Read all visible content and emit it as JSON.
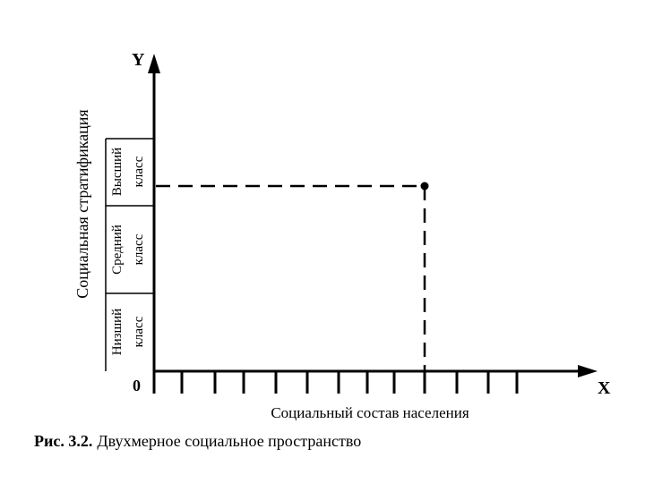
{
  "axes": {
    "y_letter": "Y",
    "x_letter": "X",
    "origin": "0",
    "y_label": "Социальная стратификация",
    "x_label": "Социальный состав населения"
  },
  "classes": [
    {
      "line1": "Высший",
      "line2": "класс"
    },
    {
      "line1": "Средний",
      "line2": "класс"
    },
    {
      "line1": "Низший",
      "line2": "класс"
    }
  ],
  "caption": {
    "number": "Рис. 3.2.",
    "text": "Двухмерное социальное пространство"
  }
}
